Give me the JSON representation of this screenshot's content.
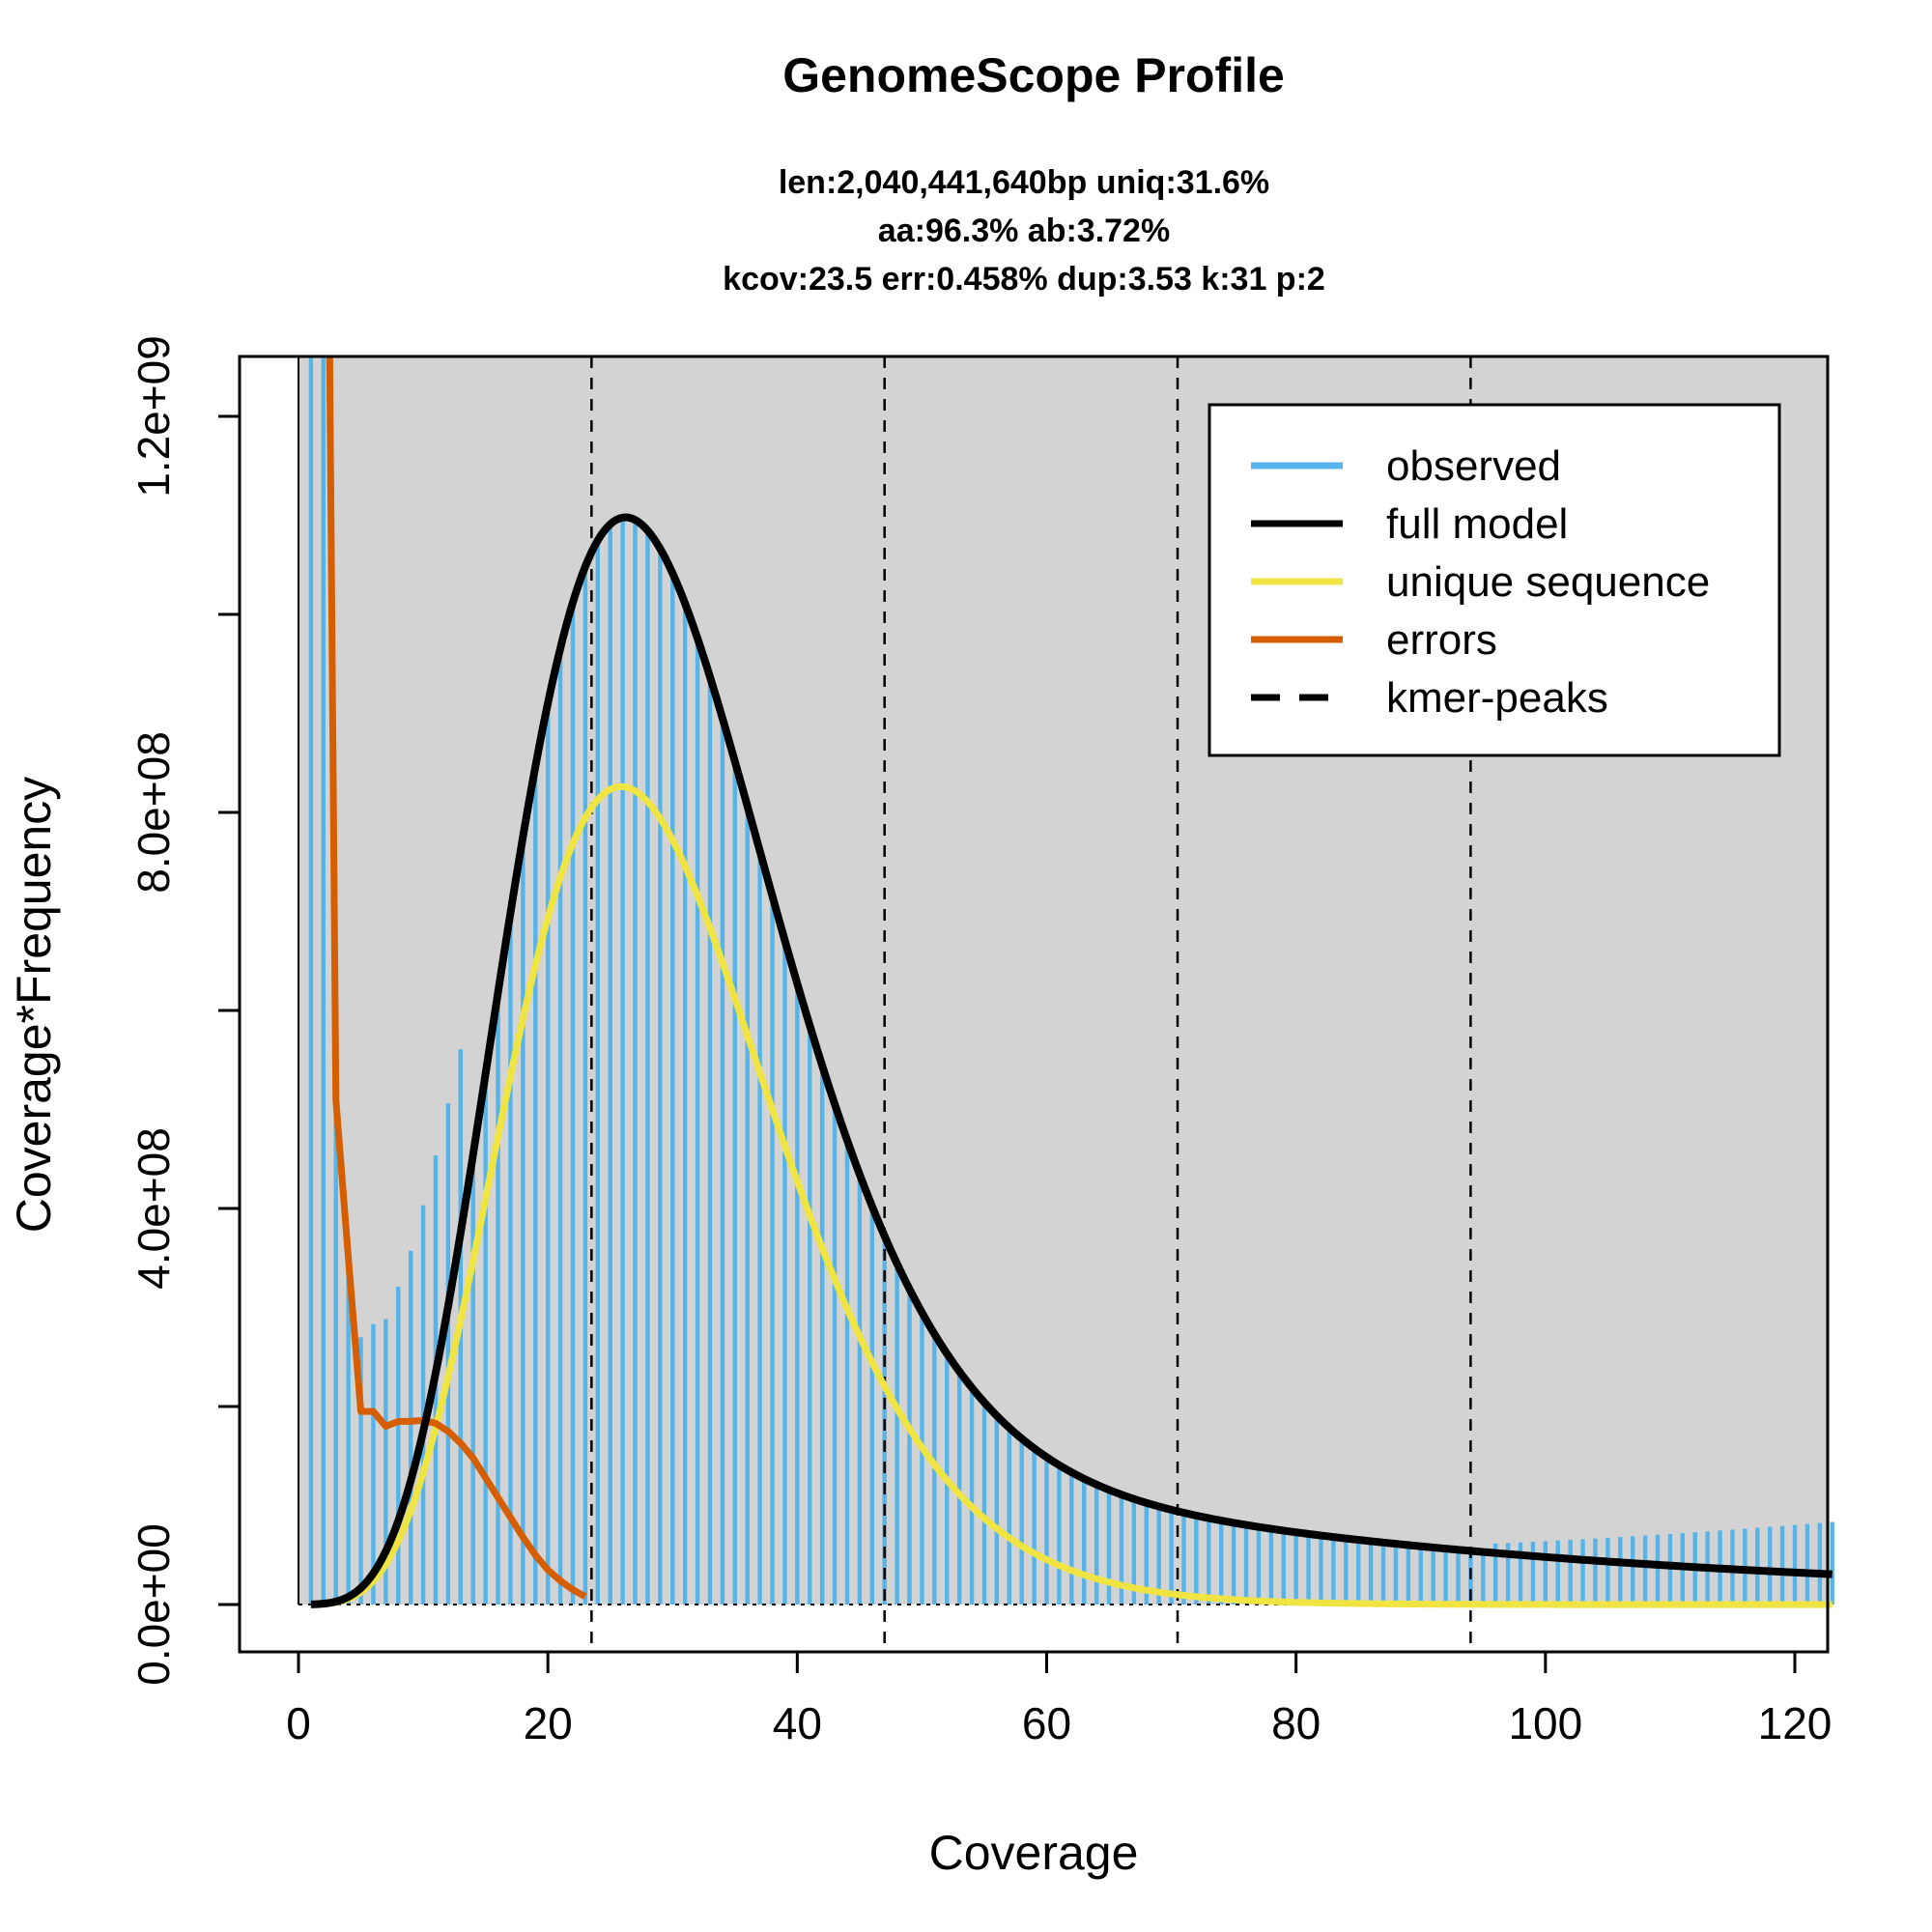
{
  "chart_data": {
    "type": "bar",
    "title": "GenomeScope Profile",
    "subtitle_lines": [
      "len:2,040,441,640bp uniq:31.6%",
      "aa:96.3% ab:3.72%",
      "kcov:23.5 err:0.458%  dup:3.53  k:31 p:2"
    ],
    "xlabel": "Coverage",
    "ylabel": "Coverage*Frequency",
    "xlim": [
      0,
      123
    ],
    "ylim": [
      0,
      1260000000
    ],
    "x_ticks": [
      0,
      20,
      40,
      60,
      80,
      100,
      120
    ],
    "x_tick_labels": [
      "0",
      "20",
      "40",
      "60",
      "80",
      "100",
      "120"
    ],
    "y_ticks": [
      0,
      200000000,
      400000000,
      600000000,
      800000000,
      1000000000,
      1200000000
    ],
    "y_tick_labels": [
      "0.0e+00",
      "",
      "4.0e+08",
      "",
      "8.0e+08",
      "",
      "1.2e+09"
    ],
    "grid": false,
    "legend_position": "top-right",
    "legend": [
      {
        "label": "observed",
        "style": "solid",
        "color": "#56B4E9"
      },
      {
        "label": "full model",
        "style": "solid",
        "color": "#000000"
      },
      {
        "label": "unique sequence",
        "style": "solid",
        "color": "#F0E442"
      },
      {
        "label": "errors",
        "style": "solid",
        "color": "#D55E00"
      },
      {
        "label": "kmer-peaks",
        "style": "dashed",
        "color": "#000000"
      }
    ],
    "kmer_peaks": [
      23.5,
      47.0,
      70.5,
      94.0
    ],
    "error_curve": {
      "x": [
        2.5,
        3,
        4,
        5,
        6,
        7,
        8,
        9,
        10,
        11,
        12,
        13,
        14,
        15,
        16,
        17,
        18,
        19,
        20,
        21,
        22,
        23
      ],
      "y": [
        1260000000,
        510000000,
        350000000,
        195000000,
        195000000,
        180000000,
        185000000,
        185000000,
        186000000,
        183000000,
        175000000,
        163000000,
        148000000,
        128000000,
        108000000,
        88000000,
        68000000,
        50000000,
        35000000,
        24000000,
        15000000,
        8000000
      ]
    },
    "colors": {
      "observed": "#56B4E9",
      "full_model": "#000000",
      "unique_sequence": "#F0E442",
      "errors": "#D55E00",
      "plot_background": "#D3D3D3"
    }
  }
}
